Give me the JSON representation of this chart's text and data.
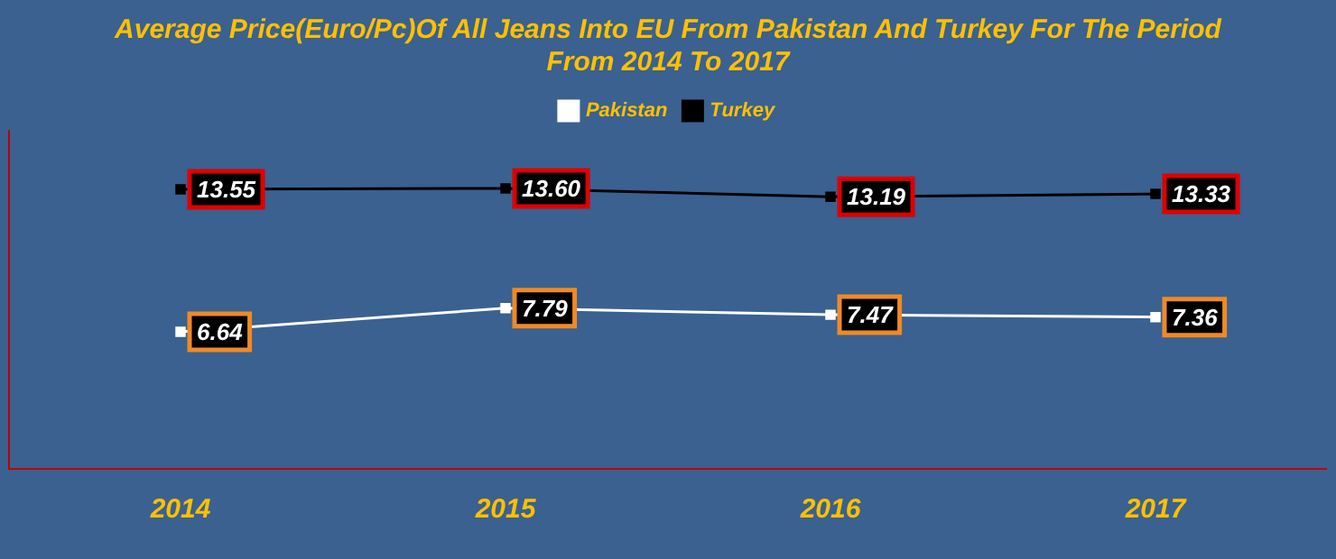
{
  "chart_data": {
    "type": "line",
    "title": "Average Price(Euro/Pc)Of All Jeans Into EU From Pakistan And Turkey For The Period\nFrom 2014 To 2017",
    "categories": [
      "2014",
      "2015",
      "2016",
      "2017"
    ],
    "series": [
      {
        "name": "Pakistan",
        "color": "#ffffff",
        "values": [
          6.64,
          7.79,
          7.47,
          7.36
        ],
        "value_labels": [
          "6.64",
          "7.79",
          "7.47",
          "7.36"
        ]
      },
      {
        "name": "Turkey",
        "color": "#000000",
        "values": [
          13.55,
          13.6,
          13.19,
          13.33
        ],
        "value_labels": [
          "13.55",
          "13.60",
          "13.19",
          "13.33"
        ]
      }
    ],
    "legend": "top",
    "grid": false,
    "marker": "square",
    "line_style": "solid"
  }
}
